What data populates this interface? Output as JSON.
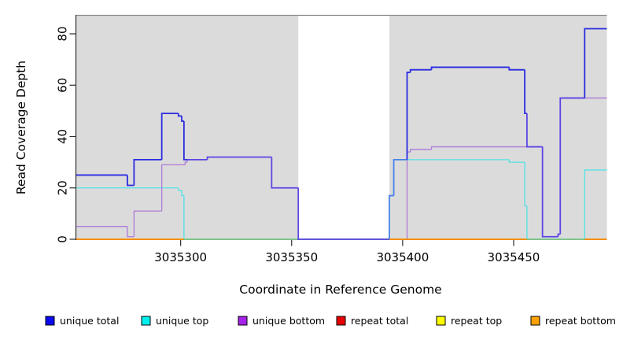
{
  "chart_data": {
    "type": "line",
    "subtype": "step-coverage",
    "title": "",
    "xlabel": "Coordinate in Reference Genome",
    "ylabel": "Read Coverage Depth",
    "xlim": [
      3035253,
      3035492
    ],
    "ylim": [
      0,
      87
    ],
    "x_ticks": [
      "3035300",
      "3035350",
      "3035400",
      "3035450"
    ],
    "x_tick_values": [
      3035300,
      3035350,
      3035400,
      3035450
    ],
    "y_ticks": [
      "0",
      "20",
      "40",
      "60",
      "80"
    ],
    "y_tick_values": [
      0,
      20,
      40,
      60,
      80
    ],
    "grid": false,
    "legend_position": "bottom",
    "plot_background": "#ffffff",
    "coverage_bands": {
      "color": "#dbdbdb",
      "border_color": "#8a8a8a",
      "regions": [
        [
          3035253,
          3035353
        ],
        [
          3035394,
          3035492
        ]
      ]
    },
    "blend_colors": {
      "blue_over_purple": "#5b46e4",
      "blue_over_cyan": "#4b82ea",
      "cyan_zero_over_orange": "#7ccd92"
    },
    "series": [
      {
        "name": "unique total",
        "legend_color": "#0a0af0",
        "line_color": "#2b2be0",
        "width": 1.8,
        "steps": [
          [
            3035253,
            25
          ],
          [
            3035276,
            21
          ],
          [
            3035279,
            31
          ],
          [
            3035291.5,
            49
          ],
          [
            3035299,
            48
          ],
          [
            3035300.5,
            46
          ],
          [
            3035301.5,
            31
          ],
          [
            3035312,
            32
          ],
          [
            3035341,
            20
          ],
          [
            3035353,
            0
          ],
          [
            3035394,
            17
          ],
          [
            3035396,
            31
          ],
          [
            3035402,
            65
          ],
          [
            3035403.5,
            66
          ],
          [
            3035413,
            67
          ],
          [
            3035448,
            66
          ],
          [
            3035455,
            49
          ],
          [
            3035456,
            36
          ],
          [
            3035463,
            1
          ],
          [
            3035470,
            2
          ],
          [
            3035471,
            55
          ],
          [
            3035482,
            82
          ]
        ]
      },
      {
        "name": "unique top",
        "legend_color": "#00efef",
        "line_color": "#52e2e6",
        "width": 1.3,
        "steps": [
          [
            3035253,
            20
          ],
          [
            3035299,
            19
          ],
          [
            3035300.5,
            17
          ],
          [
            3035301.5,
            0
          ],
          [
            3035394,
            17
          ],
          [
            3035396,
            31
          ],
          [
            3035448,
            30
          ],
          [
            3035455,
            13
          ],
          [
            3035456,
            0
          ],
          [
            3035482,
            27
          ]
        ]
      },
      {
        "name": "unique bottom",
        "legend_color": "#a522e8",
        "line_color": "#ad7ad9",
        "width": 1.3,
        "steps": [
          [
            3035253,
            5
          ],
          [
            3035276,
            1
          ],
          [
            3035279,
            11
          ],
          [
            3035291.5,
            29
          ],
          [
            3035302,
            30
          ],
          [
            3035303,
            31
          ],
          [
            3035312,
            32
          ],
          [
            3035341,
            20
          ],
          [
            3035353,
            0
          ],
          [
            3035402,
            34
          ],
          [
            3035403.5,
            35
          ],
          [
            3035413,
            36
          ],
          [
            3035463,
            1
          ],
          [
            3035470,
            2
          ],
          [
            3035471,
            55
          ]
        ]
      },
      {
        "name": "repeat total",
        "legend_color": "#e60000",
        "line_color": "#e60000",
        "width": 1.2,
        "steps": [
          [
            3035253,
            0
          ]
        ]
      },
      {
        "name": "repeat top",
        "legend_color": "#fdfd00",
        "line_color": "#fdfd00",
        "width": 1.2,
        "steps": [
          [
            3035253,
            0
          ]
        ]
      },
      {
        "name": "repeat bottom",
        "legend_color": "#ffa200",
        "line_color": "#ff9400",
        "width": 1.8,
        "steps": [
          [
            3035253,
            0
          ]
        ]
      }
    ]
  },
  "axes_style": {
    "axis_color": "#2e2e2e",
    "text_color": "#000000"
  }
}
